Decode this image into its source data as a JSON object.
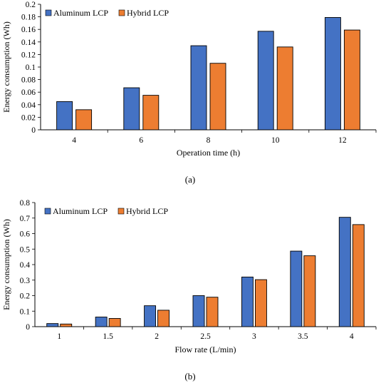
{
  "chart_data": [
    {
      "type": "bar",
      "panel_label": "(a)",
      "xlabel": "Operation time (h)",
      "ylabel": "Energy consumption (Wh)",
      "categories": [
        "4",
        "6",
        "8",
        "10",
        "12"
      ],
      "ylim": [
        0,
        0.2
      ],
      "yticks": [
        "0",
        "0.02",
        "0.04",
        "0.06",
        "0.08",
        "0.1",
        "0.12",
        "0.14",
        "0.16",
        "0.18",
        "0.2"
      ],
      "grid": false,
      "legend": "top-left",
      "series": [
        {
          "name": "Aluminum LCP",
          "color": "#4472C4",
          "values": [
            0.045,
            0.067,
            0.134,
            0.157,
            0.179
          ]
        },
        {
          "name": "Hybrid LCP",
          "color": "#ED7D31",
          "values": [
            0.032,
            0.055,
            0.106,
            0.132,
            0.159
          ]
        }
      ]
    },
    {
      "type": "bar",
      "panel_label": "(b)",
      "xlabel": "Flow rate (L/min)",
      "ylabel": "Energy consumption (Wh)",
      "categories": [
        "1",
        "1.5",
        "2",
        "2.5",
        "3",
        "3.5",
        "4"
      ],
      "ylim": [
        0,
        0.8
      ],
      "yticks": [
        "0",
        "0.1",
        "0.2",
        "0.3",
        "0.4",
        "0.5",
        "0.6",
        "0.7",
        "0.8"
      ],
      "grid": false,
      "legend": "top-left",
      "series": [
        {
          "name": "Aluminum LCP",
          "color": "#4472C4",
          "values": [
            0.02,
            0.062,
            0.135,
            0.2,
            0.32,
            0.487,
            0.705
          ]
        },
        {
          "name": "Hybrid LCP",
          "color": "#ED7D31",
          "values": [
            0.017,
            0.053,
            0.106,
            0.19,
            0.303,
            0.457,
            0.658
          ]
        }
      ]
    }
  ]
}
